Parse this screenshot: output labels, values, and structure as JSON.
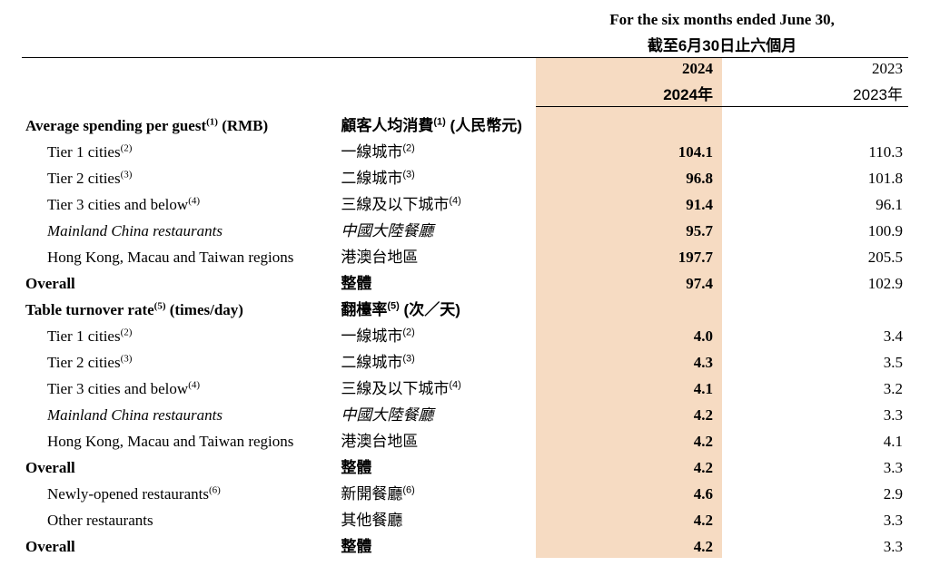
{
  "header": {
    "period_en": "For the six months ended June 30,",
    "period_zh": "截至6月30日止六個月",
    "y2024_en": "2024",
    "y2024_zh": "2024年",
    "y2023_en": "2023",
    "y2023_zh": "2023年"
  },
  "sections": {
    "spending": {
      "title_en_pre": "Average spending per guest",
      "title_en_sup": "(1)",
      "title_en_post": " (RMB)",
      "title_zh_pre": "顧客人均消費",
      "title_zh_sup": "(1)",
      "title_zh_post": " (人民幣元)"
    },
    "turnover": {
      "title_en_pre": "Table turnover rate",
      "title_en_sup": "(5)",
      "title_en_post": " (times/day)",
      "title_zh_pre": "翻檯率",
      "title_zh_sup": "(5)",
      "title_zh_post": " (次／天)"
    }
  },
  "rows": {
    "sp_t1": {
      "en": "Tier 1 cities",
      "en_sup": "(2)",
      "zh": "一線城市",
      "zh_sup": "(2)",
      "v2024": "104.1",
      "v2023": "110.3"
    },
    "sp_t2": {
      "en": "Tier 2 cities",
      "en_sup": "(3)",
      "zh": "二線城市",
      "zh_sup": "(3)",
      "v2024": "96.8",
      "v2023": "101.8"
    },
    "sp_t3": {
      "en": "Tier 3 cities and below",
      "en_sup": "(4)",
      "zh": "三線及以下城市",
      "zh_sup": "(4)",
      "v2024": "91.4",
      "v2023": "96.1"
    },
    "sp_ml": {
      "en": "Mainland China restaurants",
      "zh": "中國大陸餐廳",
      "v2024": "95.7",
      "v2023": "100.9"
    },
    "sp_hk": {
      "en": "Hong Kong, Macau and Taiwan regions",
      "zh": "港澳台地區",
      "v2024": "197.7",
      "v2023": "205.5"
    },
    "sp_ov": {
      "en": "Overall",
      "zh": "整體",
      "v2024": "97.4",
      "v2023": "102.9"
    },
    "tt_t1": {
      "en": "Tier 1 cities",
      "en_sup": "(2)",
      "zh": "一線城市",
      "zh_sup": "(2)",
      "v2024": "4.0",
      "v2023": "3.4"
    },
    "tt_t2": {
      "en": "Tier 2 cities",
      "en_sup": "(3)",
      "zh": "二線城市",
      "zh_sup": "(3)",
      "v2024": "4.3",
      "v2023": "3.5"
    },
    "tt_t3": {
      "en": "Tier 3 cities and below",
      "en_sup": "(4)",
      "zh": "三線及以下城市",
      "zh_sup": "(4)",
      "v2024": "4.1",
      "v2023": "3.2"
    },
    "tt_ml": {
      "en": "Mainland China restaurants",
      "zh": "中國大陸餐廳",
      "v2024": "4.2",
      "v2023": "3.3"
    },
    "tt_hk": {
      "en": "Hong Kong, Macau and Taiwan regions",
      "zh": "港澳台地區",
      "v2024": "4.2",
      "v2023": "4.1"
    },
    "tt_ov1": {
      "en": "Overall",
      "zh": "整體",
      "v2024": "4.2",
      "v2023": "3.3"
    },
    "tt_new": {
      "en": "Newly-opened restaurants",
      "en_sup": "(6)",
      "zh": "新開餐廳",
      "zh_sup": "(6)",
      "v2024": "4.6",
      "v2023": "2.9"
    },
    "tt_oth": {
      "en": "Other restaurants",
      "zh": "其他餐廳",
      "v2024": "4.2",
      "v2023": "3.3"
    },
    "tt_ov2": {
      "en": "Overall",
      "zh": "整體",
      "v2024": "4.2",
      "v2023": "3.3"
    }
  },
  "colors": {
    "highlight": "#f6dbc2",
    "rule": "#000000",
    "background": "#ffffff",
    "text": "#000000"
  }
}
